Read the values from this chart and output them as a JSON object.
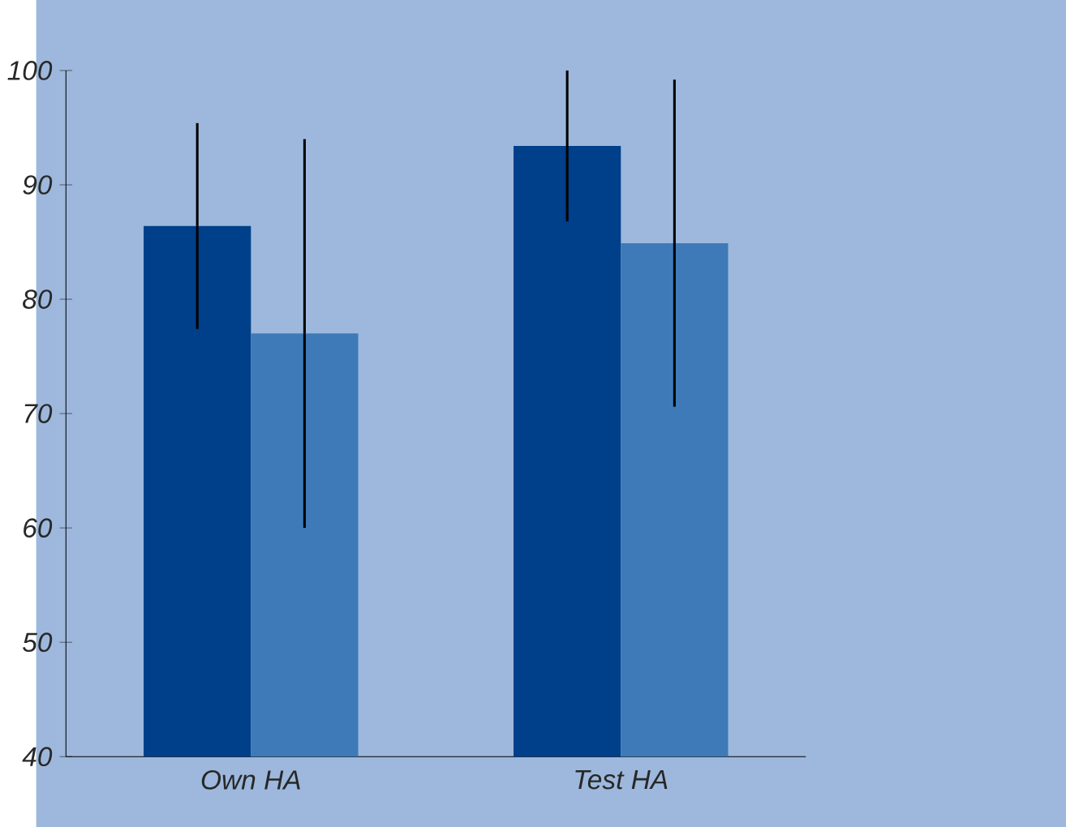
{
  "chart_data": {
    "type": "bar",
    "categories": [
      "Own HA",
      "Test HA"
    ],
    "series": [
      {
        "color": "#003f8a",
        "values": [
          86.4,
          93.4
        ],
        "errors": [
          9,
          6.6
        ]
      },
      {
        "color": "#3f7ab8",
        "values": [
          77,
          84.9
        ],
        "errors": [
          17,
          14.3
        ]
      }
    ],
    "ylim": [
      40,
      100
    ],
    "yticks": [
      40,
      50,
      60,
      70,
      80,
      90,
      100
    ],
    "grid": false
  }
}
